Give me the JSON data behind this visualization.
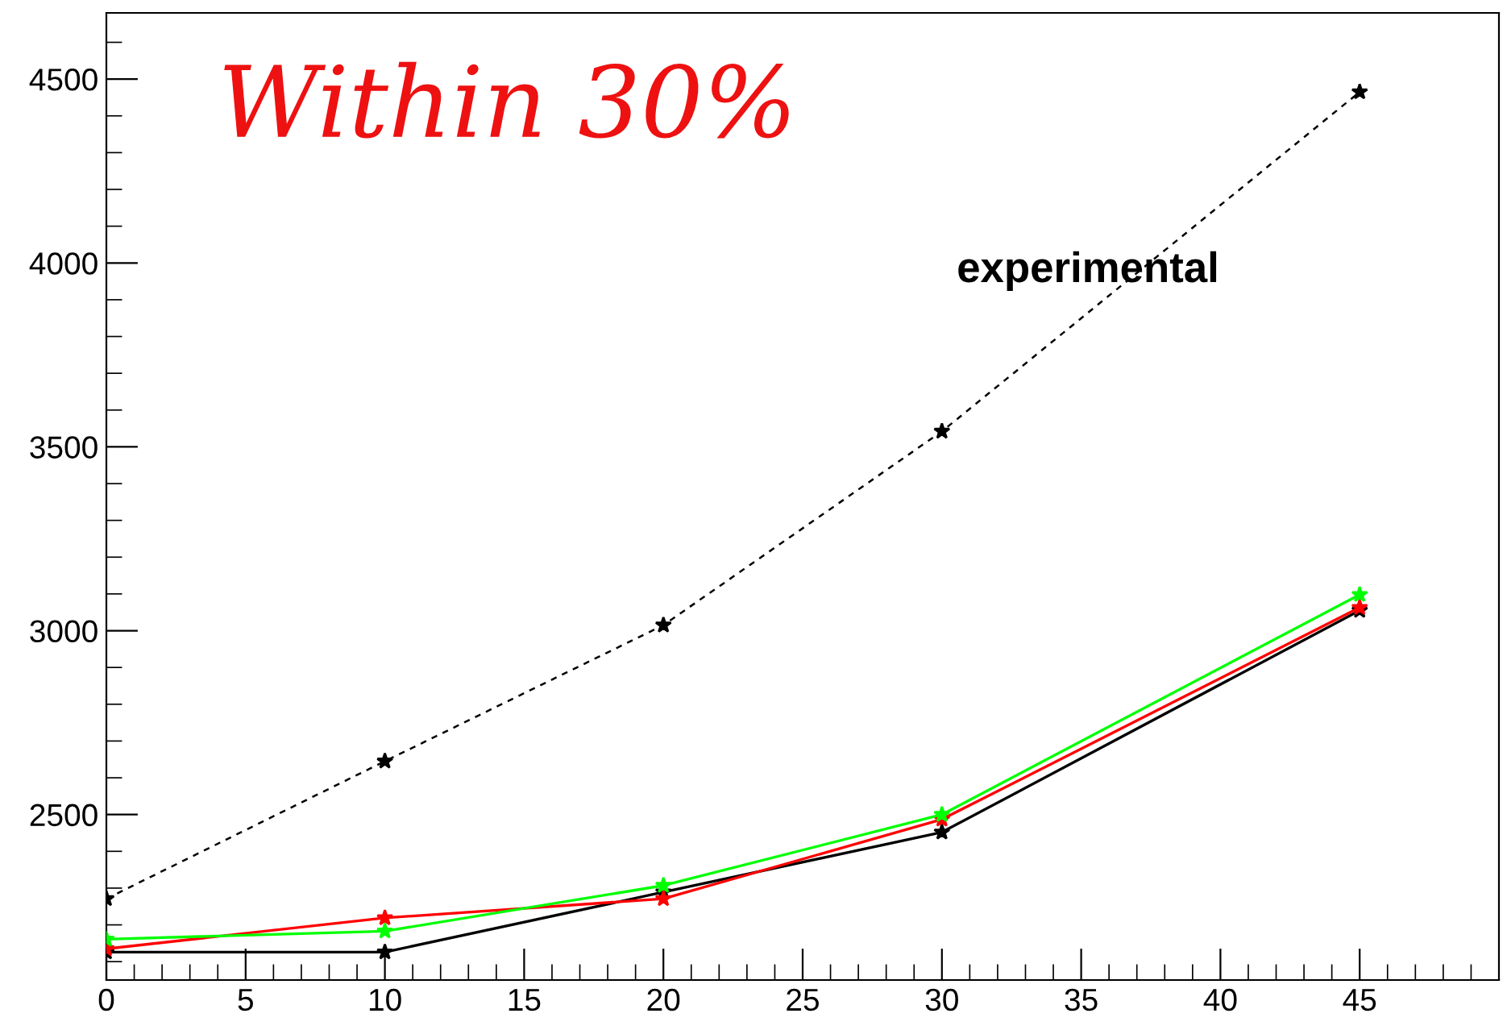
{
  "chart_data": {
    "type": "line",
    "x": [
      0,
      10,
      20,
      30,
      45
    ],
    "series": [
      {
        "name": "experimental",
        "color": "#000000",
        "line_style": "dashed",
        "values": [
          2271,
          2645,
          3015,
          3542,
          4465
        ]
      },
      {
        "color": "#000000",
        "values": [
          2126,
          2126,
          2289,
          2452,
          3055
        ]
      },
      {
        "color": "#ff0000",
        "values": [
          2135,
          2219,
          2271,
          2487,
          3063
        ]
      },
      {
        "color": "#00ff00",
        "values": [
          2161,
          2183,
          2307,
          2500,
          3098
        ]
      }
    ],
    "annotations": [
      "Within 30%"
    ],
    "xlim": [
      0,
      50
    ],
    "ylim": [
      2050,
      4680
    ],
    "xticks": [
      0,
      5,
      10,
      15,
      20,
      25,
      30,
      35,
      40,
      45
    ],
    "yticks": [
      2500,
      3000,
      3500,
      4000,
      4500
    ],
    "marker": "star",
    "line_style": "solid",
    "grid": false,
    "legend": false
  }
}
